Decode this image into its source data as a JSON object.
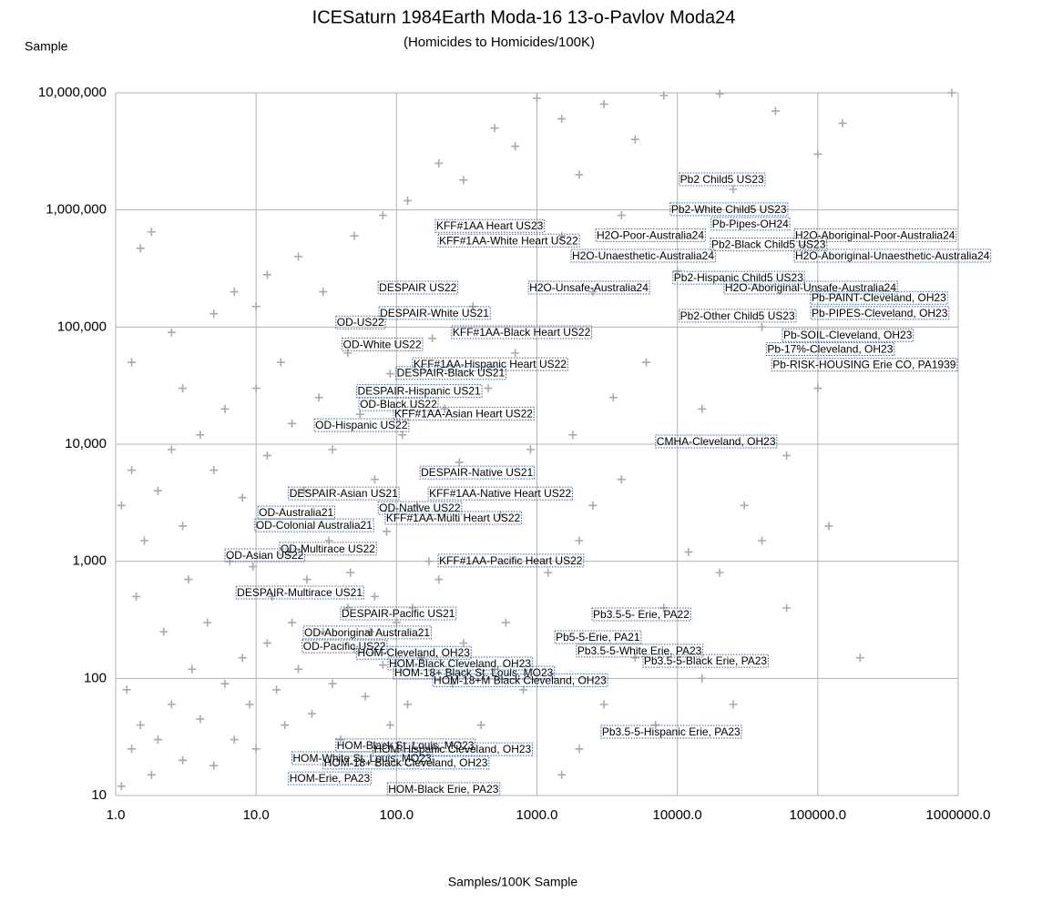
{
  "chart_data": {
    "type": "scatter",
    "title": "ICESaturn 1984Earth Moda-16 13-o-Pavlov Moda24",
    "subtitle": "(Homicides to Homicides/100K)",
    "y_label": "Sample",
    "x_label": "Samples/100K Sample",
    "x_scale": "log",
    "y_scale": "log",
    "grid": true,
    "xlim": [
      1,
      1000000
    ],
    "ylim": [
      10,
      10000000
    ],
    "xticks": [
      {
        "value": 1,
        "label": "1.0"
      },
      {
        "value": 10,
        "label": "10.0"
      },
      {
        "value": 100,
        "label": "100.0"
      },
      {
        "value": 1000,
        "label": "1000.0"
      },
      {
        "value": 10000,
        "label": "10000.0"
      },
      {
        "value": 100000,
        "label": "100000.0"
      },
      {
        "value": 1000000,
        "label": "1000000.0"
      }
    ],
    "yticks": [
      10,
      {
        "value": 100,
        "label": "100"
      },
      {
        "value": 1000,
        "label": "1,000"
      },
      {
        "value": 10000,
        "label": "10,000"
      },
      {
        "value": 100000,
        "label": "100,000"
      },
      {
        "value": 1000000,
        "label": "1,000,000"
      },
      {
        "value": 10000000,
        "label": "10,000,000"
      }
    ],
    "series": [
      {
        "color": "#aaaaaa",
        "x": [
          1.1,
          1.3,
          1.5,
          1.2,
          1.8,
          2,
          2.5,
          3,
          3.5,
          4,
          5,
          6,
          7,
          8,
          9,
          10,
          12,
          14,
          16,
          18,
          20,
          25,
          30,
          35,
          40,
          45,
          50,
          60,
          70,
          80,
          90,
          100,
          120,
          150,
          180,
          200,
          250,
          300,
          400,
          500,
          600,
          800,
          1.1,
          1.3,
          1.6,
          2,
          2.5,
          3,
          4,
          5,
          6,
          8,
          10,
          12,
          15,
          18,
          22,
          28,
          35,
          45,
          55,
          70,
          90,
          110,
          140,
          180,
          220,
          280,
          350,
          450,
          550,
          700,
          900,
          1.5,
          1.8,
          1.3,
          2.5,
          3,
          5,
          7,
          10,
          12,
          20,
          30,
          50,
          80,
          120,
          200,
          300,
          500,
          700,
          1000,
          1500,
          2000,
          3000,
          5000,
          8000,
          20000,
          50000,
          100000,
          150000,
          900000,
          1500,
          2500,
          4000,
          6000,
          10000,
          15000,
          25000,
          40000,
          60000,
          80000,
          30000,
          12000,
          8000,
          5000,
          3000,
          2000,
          1500,
          20000,
          60000,
          120000,
          200000,
          100000,
          4000,
          2000,
          1200,
          25000,
          15000,
          7000,
          40000,
          2500,
          1800,
          3500,
          1.4,
          2.2,
          3.3,
          4.5,
          6.5,
          9.5,
          13,
          17,
          23,
          33,
          47,
          65,
          85,
          130,
          170
        ],
        "values": [
          12,
          25,
          40,
          80,
          15,
          30,
          60,
          20,
          120,
          45,
          18,
          90,
          30,
          150,
          60,
          25,
          200,
          80,
          40,
          300,
          120,
          50,
          250,
          90,
          30,
          400,
          180,
          70,
          500,
          130,
          40,
          300,
          60,
          150,
          25,
          700,
          90,
          200,
          40,
          120,
          300,
          80,
          3000,
          6000,
          1500,
          4000,
          9000,
          2000,
          12000,
          6000,
          20000,
          3500,
          30000,
          8000,
          50000,
          15000,
          4000,
          25000,
          9000,
          60000,
          18000,
          5000,
          40000,
          12000,
          3000,
          80000,
          20000,
          7000,
          150000,
          30000,
          2500,
          60000,
          9000,
          470000,
          650000,
          50000,
          90000,
          30000,
          130000,
          200000,
          150000,
          280000,
          400000,
          200000,
          600000,
          900000,
          1200000,
          2500000,
          1800000,
          5000000,
          3500000,
          9000000,
          6000000,
          2000000,
          8000000,
          4000000,
          9500000,
          9800000,
          7000000,
          3000000,
          5500000,
          10000000,
          600000,
          200000,
          900000,
          50000,
          300000,
          20000,
          1500000,
          100000,
          8000,
          500000,
          3000,
          1200,
          400,
          150,
          60,
          25,
          15,
          800,
          400,
          2000,
          150,
          30000,
          5000,
          1500,
          800,
          60,
          100,
          40,
          1500,
          3000,
          12000,
          25000,
          500,
          250,
          700,
          300,
          1000,
          900,
          500,
          1200,
          700,
          1500,
          800,
          250,
          1800,
          400,
          1000
        ]
      }
    ],
    "annotations": [
      {
        "text": "Pb2 Child5 US23",
        "x": 10300,
        "y": 1800000
      },
      {
        "text": "Pb2-White Child5 US23",
        "x": 8900,
        "y": 1000000
      },
      {
        "text": "Pb-Pipes-OH24",
        "x": 17400,
        "y": 750000
      },
      {
        "text": "KFF#1AA Heart US23",
        "x": 189,
        "y": 720000
      },
      {
        "text": "KFF#1AA-White Heart US22",
        "x": 198,
        "y": 540000
      },
      {
        "text": "H2O-Poor-Australia24",
        "x": 2620,
        "y": 600000
      },
      {
        "text": "H2O-Aboriginal-Poor-Australia24",
        "x": 68000,
        "y": 600000
      },
      {
        "text": "Pb2-Black Child5 US23",
        "x": 17200,
        "y": 500000
      },
      {
        "text": "H2O-Unaesthetic-Australia24",
        "x": 1750,
        "y": 400000
      },
      {
        "text": "H2O-Aboriginal-Unaesthetic-Australia24",
        "x": 68000,
        "y": 400000
      },
      {
        "text": "Pb2-Hispanic Child5 US23",
        "x": 9300,
        "y": 260000
      },
      {
        "text": "H2O-Aboriginal-Unsafe-Australia24",
        "x": 21500,
        "y": 214000
      },
      {
        "text": "DESPAIR US22",
        "x": 74,
        "y": 214000
      },
      {
        "text": "H2O-Unsafe-Australia24",
        "x": 870,
        "y": 214000
      },
      {
        "text": "Pb-PAINT-Cleveland, OH23",
        "x": 89000,
        "y": 175000
      },
      {
        "text": "DESPAIR-White US21",
        "x": 75,
        "y": 130000
      },
      {
        "text": "Pb2-Other Child5 US23",
        "x": 10300,
        "y": 123000
      },
      {
        "text": "Pb-PIPES-Cleveland, OH23",
        "x": 89000,
        "y": 130000
      },
      {
        "text": "OD-US22",
        "x": 37,
        "y": 108000
      },
      {
        "text": "KFF#1AA-Black Heart US22",
        "x": 247,
        "y": 89000
      },
      {
        "text": "Pb-SOIL-Cleveland, OH23",
        "x": 56000,
        "y": 84000
      },
      {
        "text": "OD-White US22",
        "x": 41,
        "y": 70000
      },
      {
        "text": "Pb-17%-Cleveland, OH23",
        "x": 43000,
        "y": 64000
      },
      {
        "text": "KFF#1AA-Hispanic Heart US22",
        "x": 130,
        "y": 47500
      },
      {
        "text": "Pb-RISK-HOUSING Erie CO, PA1939",
        "x": 47000,
        "y": 47000
      },
      {
        "text": "DESPAIR-Black US21",
        "x": 99,
        "y": 40000
      },
      {
        "text": "DESPAIR-Hispanic US21",
        "x": 52,
        "y": 28000
      },
      {
        "text": "OD-Black US22",
        "x": 54,
        "y": 21600
      },
      {
        "text": "KFF#1AA-Asian Heart US22",
        "x": 95,
        "y": 18000
      },
      {
        "text": "OD-Hispanic US22",
        "x": 26,
        "y": 14300
      },
      {
        "text": "CMHA-Cleveland, OH23",
        "x": 7000,
        "y": 10400
      },
      {
        "text": "DESPAIR-Native US21",
        "x": 147,
        "y": 5650
      },
      {
        "text": "DESPAIR-Asian US21",
        "x": 17,
        "y": 3740
      },
      {
        "text": "KFF#1AA-Native Heart US22",
        "x": 168,
        "y": 3740
      },
      {
        "text": "OD-Native US22",
        "x": 74,
        "y": 2810
      },
      {
        "text": "OD-Australia21",
        "x": 10.3,
        "y": 2570
      },
      {
        "text": "KFF#1AA-Multi Heart US22",
        "x": 83,
        "y": 2310
      },
      {
        "text": "OD-Colonial Australia21",
        "x": 9.8,
        "y": 2000
      },
      {
        "text": "OD-Multirace US22",
        "x": 14.7,
        "y": 1260
      },
      {
        "text": "OD-Asian US22",
        "x": 6,
        "y": 1110
      },
      {
        "text": "KFF#1AA-Pacific Heart US22",
        "x": 198,
        "y": 1000
      },
      {
        "text": "DESPAIR-Multirace US21",
        "x": 7.2,
        "y": 533
      },
      {
        "text": "DESPAIR-Pacific US21",
        "x": 40,
        "y": 353
      },
      {
        "text": "Pb3.5-5- Erie, PA22",
        "x": 2470,
        "y": 347
      },
      {
        "text": "OD-Aboriginal Australia21",
        "x": 21.7,
        "y": 243
      },
      {
        "text": "Pb5-5-Erie, PA21",
        "x": 1340,
        "y": 222
      },
      {
        "text": "OD-Pacific US22",
        "x": 21.3,
        "y": 185
      },
      {
        "text": "Pb3.5-5-White Erie, PA23",
        "x": 1910,
        "y": 170
      },
      {
        "text": "HOM-Cleveland, OH23",
        "x": 52,
        "y": 163
      },
      {
        "text": "Pb3.5-5-Black Erie, PA23",
        "x": 5690,
        "y": 139
      },
      {
        "text": "HOM-Black Cleveland, OH23",
        "x": 87,
        "y": 132
      },
      {
        "text": "HOM-18+ Black St. Louis, MO23",
        "x": 95,
        "y": 110
      },
      {
        "text": "HOM-18+M Black Cleveland, OH23",
        "x": 181,
        "y": 95
      },
      {
        "text": "Pb3.5-5-Hispanic Erie, PA23",
        "x": 2860,
        "y": 34.5
      },
      {
        "text": "HOM-Black St. Louis, MO23",
        "x": 37,
        "y": 26.4
      },
      {
        "text": "HOM-Hispanic Cleveland, OH23",
        "x": 68,
        "y": 24.5
      },
      {
        "text": "HOM-White St. Louis, MO23",
        "x": 18,
        "y": 20.5
      },
      {
        "text": "HOM-18+ Black Cleveland, OH23",
        "x": 30,
        "y": 18.8
      },
      {
        "text": "HOM-Erie, PA23",
        "x": 17,
        "y": 13.8
      },
      {
        "text": "HOM-Black Erie, PA23",
        "x": 86,
        "y": 11.2
      }
    ]
  }
}
